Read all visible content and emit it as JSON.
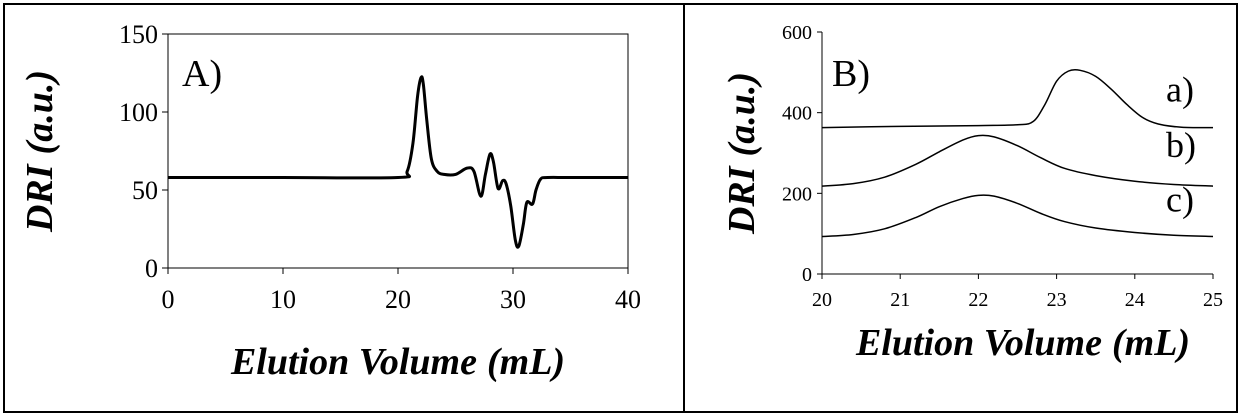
{
  "chart_data": [
    {
      "panel": "A)",
      "type": "line",
      "xlabel": "Elution Volume",
      "xlabel_unit": "(mL)",
      "ylabel": "DRI",
      "ylabel_unit": "(a.u.)",
      "xlim": [
        0,
        40
      ],
      "ylim": [
        0,
        150
      ],
      "xticks": [
        0,
        10,
        20,
        30,
        40
      ],
      "yticks": [
        0,
        50,
        100,
        150
      ],
      "grid": false,
      "series": [
        {
          "x": [
            0,
            10,
            20,
            20.8,
            21.3,
            21.7,
            22.0,
            22.2,
            22.5,
            22.9,
            23.4,
            24.0,
            25.0,
            26.0,
            26.6,
            27.2,
            27.6,
            28.0,
            28.3,
            28.7,
            29.1,
            29.4,
            29.8,
            30.2,
            30.5,
            30.9,
            31.2,
            31.7,
            32.0,
            32.4,
            33.0,
            35.0,
            40.0
          ],
          "y": [
            58,
            58,
            58,
            62,
            80,
            110,
            122,
            118,
            95,
            70,
            62,
            60,
            60,
            64,
            62,
            46,
            60,
            73,
            68,
            51,
            56,
            54,
            40,
            18,
            14,
            28,
            42,
            41,
            50,
            57,
            58,
            58,
            58
          ]
        }
      ]
    },
    {
      "panel": "B)",
      "type": "line",
      "xlabel": "Elution Volume",
      "xlabel_unit": "(mL)",
      "ylabel": "DRI",
      "ylabel_unit": "(a.u.)",
      "xlim": [
        20,
        25
      ],
      "ylim": [
        0,
        600
      ],
      "xticks": [
        20,
        21,
        22,
        23,
        24,
        25
      ],
      "yticks": [
        0,
        200,
        400,
        600
      ],
      "grid": false,
      "series": [
        {
          "name": "a)",
          "x": [
            20,
            21,
            22,
            22.5,
            22.7,
            22.85,
            23.0,
            23.15,
            23.3,
            23.5,
            23.7,
            23.9,
            24.1,
            24.3,
            24.6,
            25
          ],
          "y": [
            363,
            366,
            368,
            370,
            378,
            420,
            478,
            503,
            505,
            490,
            458,
            420,
            388,
            372,
            364,
            363
          ]
        },
        {
          "name": "b)",
          "x": [
            20,
            20.4,
            20.8,
            21.2,
            21.5,
            21.8,
            22.0,
            22.2,
            22.5,
            22.8,
            23.1,
            23.5,
            24.0,
            24.5,
            25
          ],
          "y": [
            218,
            224,
            240,
            272,
            303,
            332,
            343,
            340,
            318,
            288,
            262,
            244,
            230,
            222,
            218
          ]
        },
        {
          "name": "c)",
          "x": [
            20,
            20.4,
            20.8,
            21.2,
            21.5,
            21.8,
            22.0,
            22.2,
            22.5,
            22.8,
            23.1,
            23.5,
            24.0,
            24.5,
            25
          ],
          "y": [
            93,
            98,
            112,
            140,
            167,
            187,
            195,
            193,
            175,
            150,
            130,
            114,
            103,
            96,
            93
          ]
        }
      ]
    }
  ]
}
